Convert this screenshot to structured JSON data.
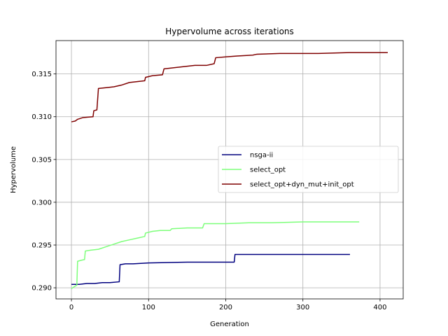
{
  "chart_data": {
    "type": "line",
    "title": "Hypervolume across iterations",
    "xlabel": "Generation",
    "ylabel": "Hypervolume",
    "xlim": [
      -20,
      430
    ],
    "ylim": [
      0.2887,
      0.3189
    ],
    "xticks": [
      0,
      100,
      200,
      300,
      400
    ],
    "yticks": [
      0.29,
      0.295,
      0.3,
      0.305,
      0.31,
      0.315
    ],
    "ytick_labels": [
      "0.290",
      "0.295",
      "0.300",
      "0.305",
      "0.310",
      "0.315"
    ],
    "grid": true,
    "legend_position": "center-right",
    "series": [
      {
        "name": "nsga-ii",
        "color": "#00007f",
        "points": [
          [
            0,
            0.2904
          ],
          [
            10,
            0.2904
          ],
          [
            20,
            0.2905
          ],
          [
            30,
            0.2905
          ],
          [
            40,
            0.2906
          ],
          [
            50,
            0.2906
          ],
          [
            62,
            0.2907
          ],
          [
            63,
            0.2927
          ],
          [
            70,
            0.2928
          ],
          [
            80,
            0.2928
          ],
          [
            100,
            0.2929
          ],
          [
            150,
            0.293
          ],
          [
            200,
            0.293
          ],
          [
            211,
            0.293
          ],
          [
            212,
            0.2939
          ],
          [
            250,
            0.2939
          ],
          [
            300,
            0.2939
          ],
          [
            361,
            0.2939
          ]
        ]
      },
      {
        "name": "select_opt",
        "color": "#7dff7a",
        "points": [
          [
            0,
            0.2899
          ],
          [
            5,
            0.2902
          ],
          [
            7,
            0.2903
          ],
          [
            8,
            0.2931
          ],
          [
            12,
            0.2932
          ],
          [
            17,
            0.2933
          ],
          [
            18,
            0.2943
          ],
          [
            25,
            0.2944
          ],
          [
            35,
            0.2945
          ],
          [
            45,
            0.2948
          ],
          [
            55,
            0.2951
          ],
          [
            65,
            0.2954
          ],
          [
            75,
            0.2956
          ],
          [
            85,
            0.2958
          ],
          [
            95,
            0.296
          ],
          [
            96,
            0.2964
          ],
          [
            105,
            0.2966
          ],
          [
            115,
            0.2967
          ],
          [
            128,
            0.2967
          ],
          [
            130,
            0.2969
          ],
          [
            150,
            0.297
          ],
          [
            170,
            0.297
          ],
          [
            172,
            0.2975
          ],
          [
            200,
            0.2975
          ],
          [
            230,
            0.2976
          ],
          [
            260,
            0.2976
          ],
          [
            300,
            0.2977
          ],
          [
            340,
            0.2977
          ],
          [
            373,
            0.2977
          ]
        ]
      },
      {
        "name": "select_opt+dyn_mut+init_opt",
        "color": "#7f0000",
        "points": [
          [
            0,
            0.3094
          ],
          [
            5,
            0.3095
          ],
          [
            8,
            0.3097
          ],
          [
            15,
            0.3099
          ],
          [
            28,
            0.31
          ],
          [
            29,
            0.3107
          ],
          [
            33,
            0.3108
          ],
          [
            35,
            0.3133
          ],
          [
            45,
            0.3134
          ],
          [
            55,
            0.3135
          ],
          [
            65,
            0.3137
          ],
          [
            75,
            0.314
          ],
          [
            85,
            0.3141
          ],
          [
            95,
            0.3142
          ],
          [
            96,
            0.3146
          ],
          [
            105,
            0.3148
          ],
          [
            118,
            0.3149
          ],
          [
            120,
            0.3156
          ],
          [
            140,
            0.3158
          ],
          [
            160,
            0.316
          ],
          [
            175,
            0.316
          ],
          [
            185,
            0.3162
          ],
          [
            187,
            0.3169
          ],
          [
            200,
            0.317
          ],
          [
            215,
            0.3171
          ],
          [
            235,
            0.3172
          ],
          [
            240,
            0.3173
          ],
          [
            270,
            0.3174
          ],
          [
            320,
            0.3174
          ],
          [
            360,
            0.3175
          ],
          [
            410,
            0.3175
          ]
        ]
      }
    ]
  }
}
